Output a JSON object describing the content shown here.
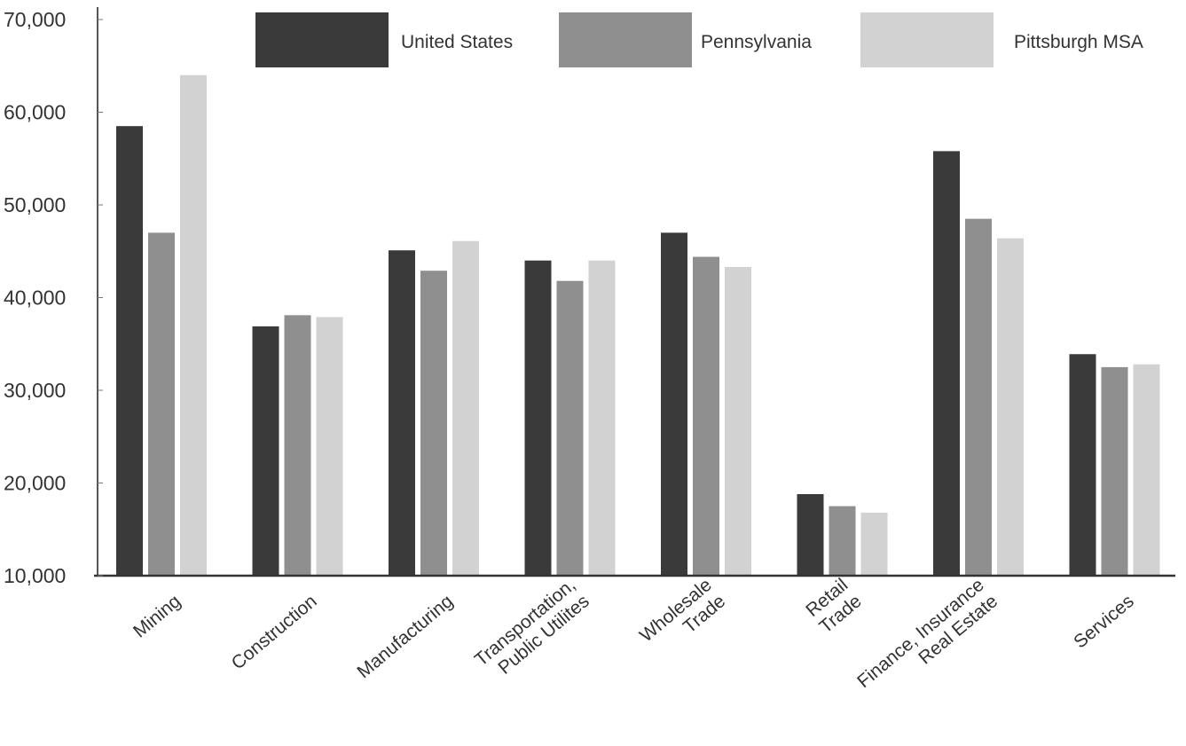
{
  "chart_data": {
    "type": "bar",
    "title": "",
    "xlabel": "",
    "ylabel": "",
    "ylim": [
      10000,
      70000
    ],
    "yticks": [
      10000,
      20000,
      30000,
      40000,
      50000,
      60000,
      70000
    ],
    "ytick_labels": [
      "10,000",
      "20,000",
      "30,000",
      "40,000",
      "50,000",
      "60,000",
      "70,000"
    ],
    "grid": false,
    "legend_position": "top",
    "categories": [
      [
        "Mining"
      ],
      [
        "Construction"
      ],
      [
        "Manufacturing"
      ],
      [
        "Transportation,",
        "Public Utilites"
      ],
      [
        "Wholesale",
        "Trade"
      ],
      [
        "Retail",
        "Trade"
      ],
      [
        "Finance, Insurance",
        "Real Estate"
      ],
      [
        "Services"
      ]
    ],
    "series": [
      {
        "name": "United States",
        "color": "#3a3a3a",
        "values": [
          58500,
          36900,
          45100,
          44000,
          47000,
          18800,
          55800,
          33900
        ]
      },
      {
        "name": "Pennsylvania",
        "color": "#8f8f8f",
        "values": [
          47000,
          38100,
          42900,
          41800,
          44400,
          17500,
          48500,
          32500
        ]
      },
      {
        "name": "Pittsburgh MSA",
        "color": "#d2d2d2",
        "values": [
          64000,
          37900,
          46100,
          44000,
          43300,
          16800,
          46400,
          32800
        ]
      }
    ]
  }
}
